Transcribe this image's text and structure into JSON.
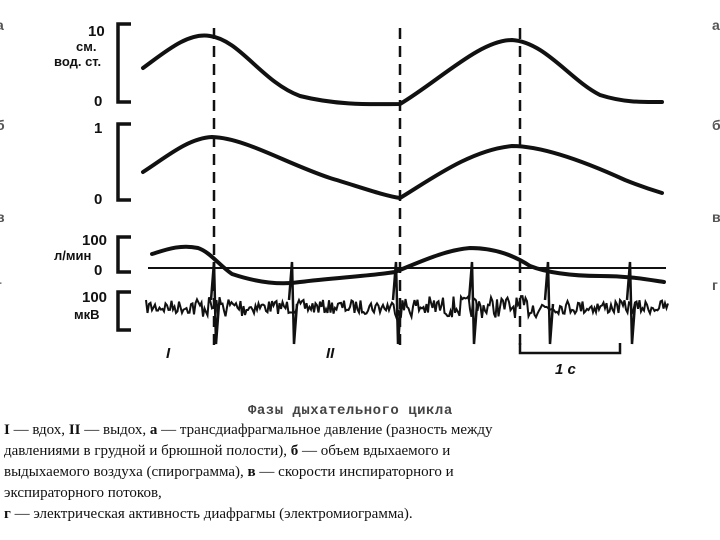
{
  "figure": {
    "panels": {
      "a": {
        "edge_letter_left": "a",
        "edge_letter_right": "a",
        "tick_top": "10",
        "unit_1": "см.",
        "unit_2": "вод. ст.",
        "tick_bottom": "0"
      },
      "b": {
        "edge_letter_left": "б",
        "edge_letter_right": "б",
        "tick_top": "1",
        "tick_bottom": "0"
      },
      "c": {
        "edge_letter_left": "в",
        "edge_letter_right": "в",
        "tick_top": "100",
        "unit_1": "л/мин",
        "tick_bottom": "0"
      },
      "d": {
        "edge_letter_left": "г",
        "edge_letter_right": "г",
        "tick_top": "100",
        "unit_1": "мкВ"
      }
    },
    "phases": {
      "inspiration": "I",
      "expiration": "II"
    },
    "scale_bar_label": "1 с"
  },
  "caption": {
    "title": "Фазы дыхательного цикла",
    "l1_p1": "I",
    "l1_p2": " — вдох, ",
    "l1_p3": "II",
    "l1_p4": " — выдох, ",
    "l1_p5": "а",
    "l1_p6": " — трансдиафрагмальное давление (разность между",
    "l2": "давлениями в грудной и брюшной полости), ",
    "l2_b": "б",
    "l2_end": " — объем вдыхаемого и",
    "l3_p1": "выдыхаемого воздуха (спирограмма), ",
    "l3_b": "в",
    "l3_p2": " — скорости инспираторного и",
    "l4": "экспираторного потоков,",
    "l5_b": "г",
    "l5_p2": " — электрическая активность диафрагмы (электромиограмма)."
  }
}
